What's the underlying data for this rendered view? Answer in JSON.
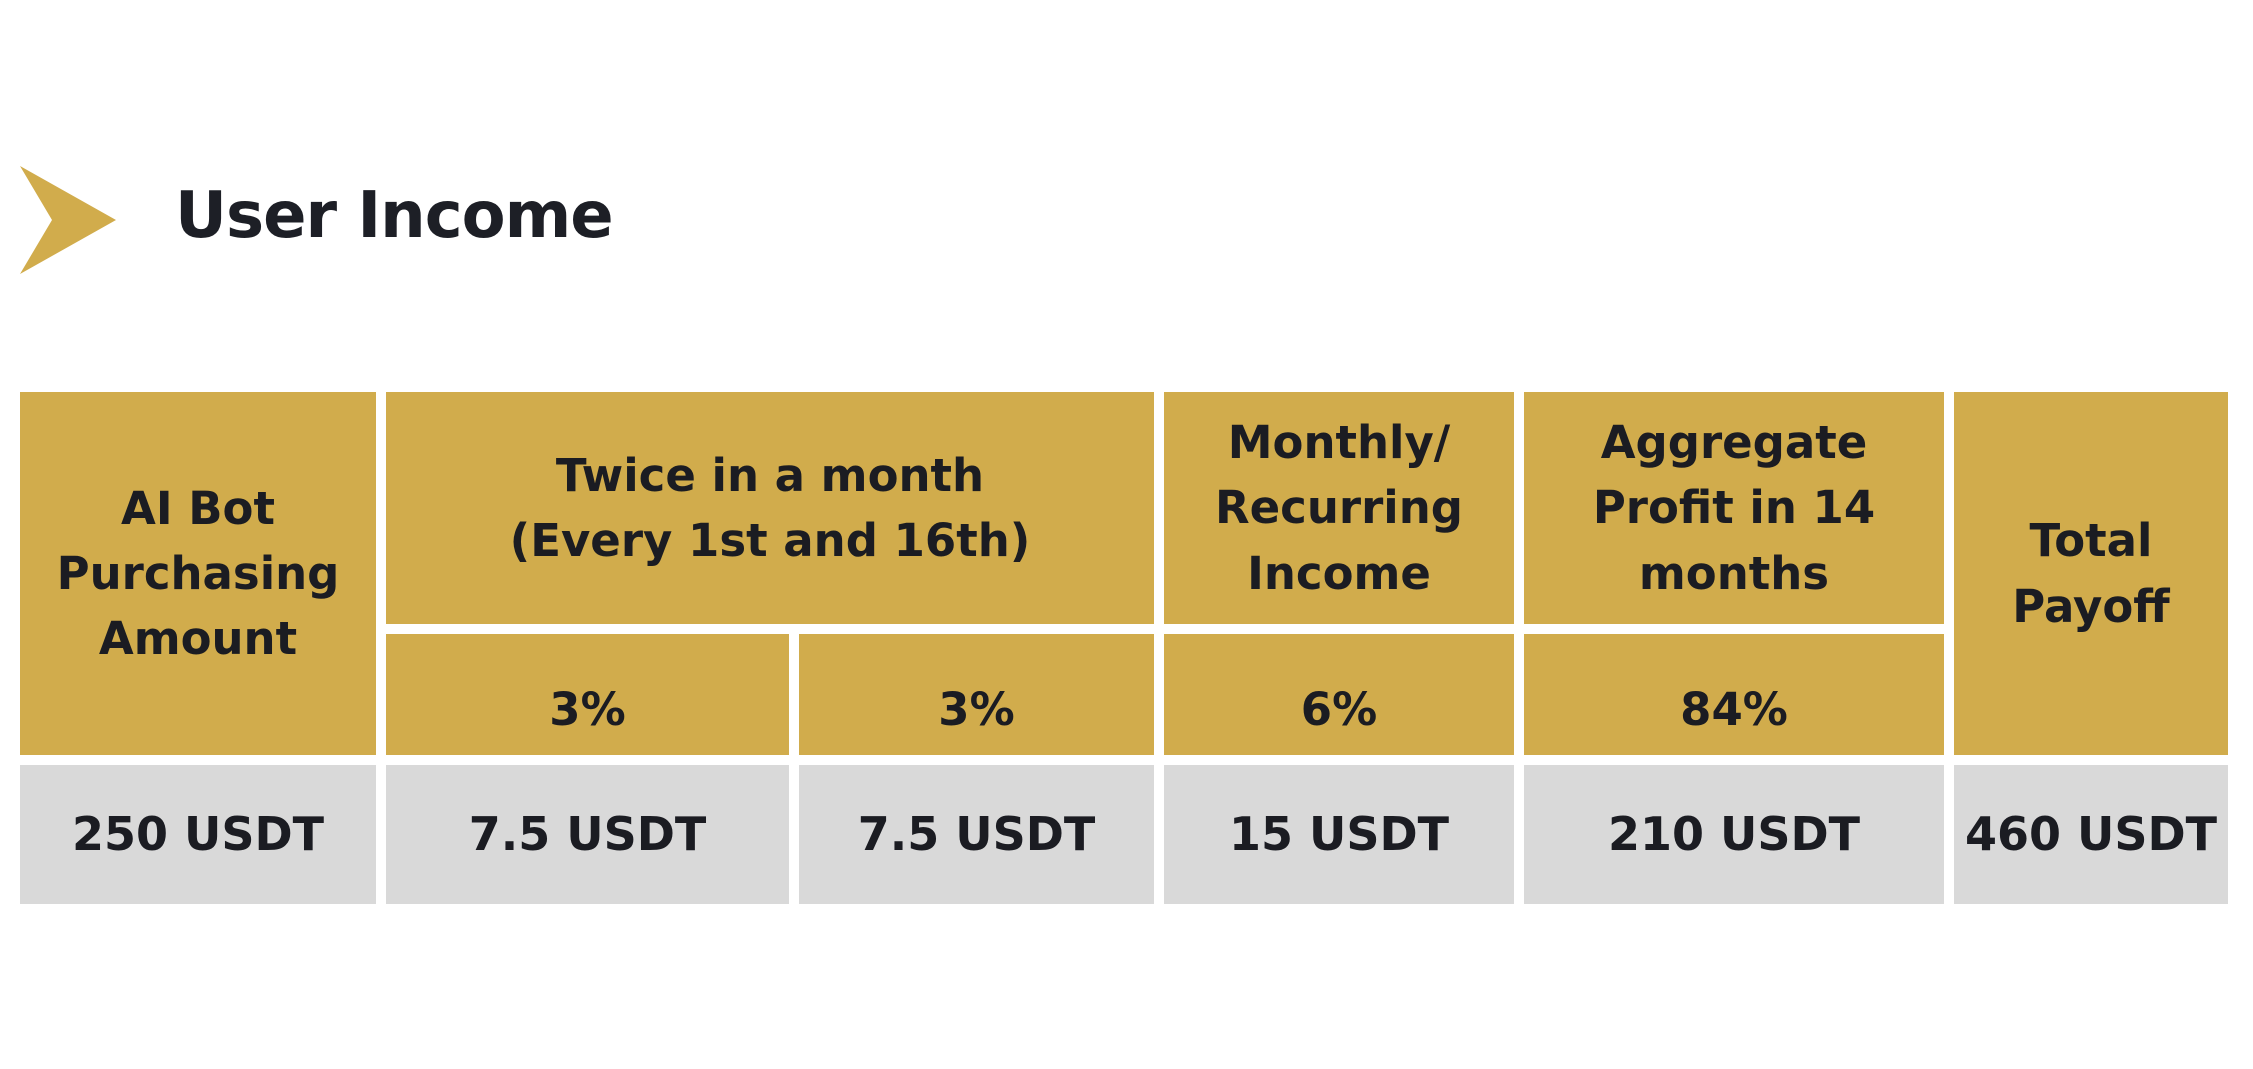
{
  "page": {
    "title": "User Income",
    "title_icon": "chevron-right-icon",
    "accent_color": "#d1ac4c",
    "value_row_color": "#d9d9d9"
  },
  "table": {
    "headers": {
      "purchase_amount": "AI Bot Purchasing Amount",
      "twice_monthly_line1": "Twice in a month",
      "twice_monthly_line2": "(Every 1st and 16th)",
      "monthly_income": "Monthly/ Recurring Income",
      "aggregate_profit": "Aggregate Profit in 14 months",
      "total_payoff": "Total Payoff"
    },
    "rates": {
      "first_half": "3%",
      "second_half": "3%",
      "monthly": "6%",
      "aggregate": "84%"
    },
    "values": {
      "purchase_amount": "250 USDT",
      "first_half": "7.5 USDT",
      "second_half": "7.5 USDT",
      "monthly": "15 USDT",
      "aggregate": "210 USDT",
      "total_payoff": "460 USDT"
    }
  }
}
